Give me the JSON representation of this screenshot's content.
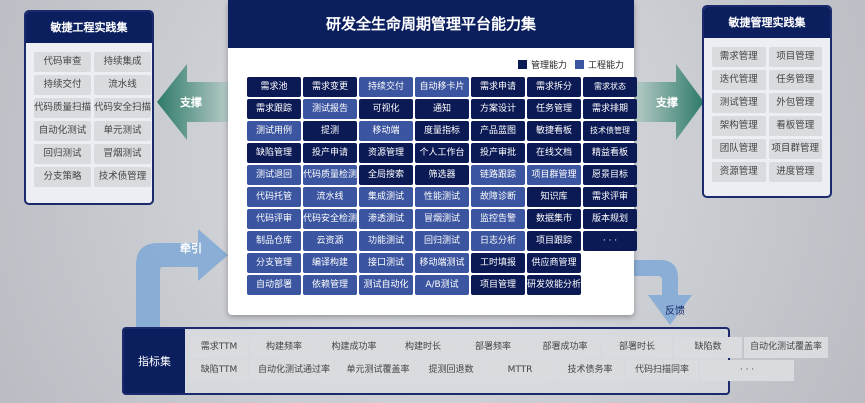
{
  "title": "研发全生命周期管理平台能力集",
  "legend": [
    {
      "label": "管理能力",
      "color": "#0b1a55"
    },
    {
      "label": "工程能力",
      "color": "#3b55a0"
    }
  ],
  "left_panel": {
    "title": "敏捷工程实践集",
    "items": [
      "代码审查",
      "持续集成",
      "持续交付",
      "流水线",
      "代码质量扫描",
      "代码安全扫描",
      "自动化测试",
      "单元测试",
      "回归测试",
      "冒烟测试",
      "分支策略",
      "技术债管理"
    ]
  },
  "right_panel": {
    "title": "敏捷管理实践集",
    "items": [
      "需求管理",
      "项目管理",
      "迭代管理",
      "任务管理",
      "测试管理",
      "外包管理",
      "架构管理",
      "看板管理",
      "团队管理",
      "项目群管理",
      "资源管理",
      "进度管理"
    ]
  },
  "arrows": {
    "left": "支撑",
    "right": "支撑",
    "pull": "牵引",
    "feedback": "反馈"
  },
  "capabilities": [
    [
      {
        "t": "需求池",
        "k": "m"
      },
      {
        "t": "需求变更",
        "k": "m"
      },
      {
        "t": "持续交付",
        "k": "e"
      },
      {
        "t": "自动移卡片",
        "k": "e"
      },
      {
        "t": "需求申请",
        "k": "m"
      },
      {
        "t": "需求拆分",
        "k": "m"
      },
      {
        "t": "需求状态",
        "k": "m"
      }
    ],
    [
      {
        "t": "需求跟踪",
        "k": "m"
      },
      {
        "t": "测试报告",
        "k": "e"
      },
      {
        "t": "可视化",
        "k": "m"
      },
      {
        "t": "通知",
        "k": "m"
      },
      {
        "t": "方案设计",
        "k": "m"
      },
      {
        "t": "任务管理",
        "k": "m"
      },
      {
        "t": "需求排期",
        "k": "m"
      }
    ],
    [
      {
        "t": "测试用例",
        "k": "e"
      },
      {
        "t": "提测",
        "k": "m"
      },
      {
        "t": "移动端",
        "k": "e"
      },
      {
        "t": "度量指标",
        "k": "m"
      },
      {
        "t": "产品蓝图",
        "k": "m"
      },
      {
        "t": "敏捷看板",
        "k": "m"
      },
      {
        "t": "技术债管理",
        "k": "m"
      }
    ],
    [
      {
        "t": "缺陷管理",
        "k": "m"
      },
      {
        "t": "投产申请",
        "k": "m"
      },
      {
        "t": "资源管理",
        "k": "m"
      },
      {
        "t": "个人工作台",
        "k": "m"
      },
      {
        "t": "投产审批",
        "k": "m"
      },
      {
        "t": "在线文档",
        "k": "m"
      },
      {
        "t": "精益看板",
        "k": "m"
      }
    ],
    [
      {
        "t": "测试退回",
        "k": "e"
      },
      {
        "t": "代码质量检测",
        "k": "e"
      },
      {
        "t": "全局搜索",
        "k": "m"
      },
      {
        "t": "筛选器",
        "k": "m"
      },
      {
        "t": "链路跟踪",
        "k": "e"
      },
      {
        "t": "项目群管理",
        "k": "e"
      },
      {
        "t": "愿景目标",
        "k": "m"
      }
    ],
    [
      {
        "t": "代码托管",
        "k": "e"
      },
      {
        "t": "流水线",
        "k": "e"
      },
      {
        "t": "集成测试",
        "k": "e"
      },
      {
        "t": "性能测试",
        "k": "e"
      },
      {
        "t": "故障诊断",
        "k": "e"
      },
      {
        "t": "知识库",
        "k": "m"
      },
      {
        "t": "需求评审",
        "k": "m"
      }
    ],
    [
      {
        "t": "代码评审",
        "k": "e"
      },
      {
        "t": "代码安全检测",
        "k": "e"
      },
      {
        "t": "渗透测试",
        "k": "e"
      },
      {
        "t": "冒烟测试",
        "k": "e"
      },
      {
        "t": "监控告警",
        "k": "e"
      },
      {
        "t": "数据集市",
        "k": "m"
      },
      {
        "t": "版本规划",
        "k": "m"
      }
    ],
    [
      {
        "t": "制品仓库",
        "k": "e"
      },
      {
        "t": "云资源",
        "k": "e"
      },
      {
        "t": "功能测试",
        "k": "e"
      },
      {
        "t": "回归测试",
        "k": "e"
      },
      {
        "t": "日志分析",
        "k": "e"
      },
      {
        "t": "项目跟踪",
        "k": "m"
      },
      {
        "t": "· · ·",
        "k": "m"
      }
    ],
    [
      {
        "t": "分支管理",
        "k": "e"
      },
      {
        "t": "编译构建",
        "k": "e"
      },
      {
        "t": "接口测试",
        "k": "e"
      },
      {
        "t": "移动端测试",
        "k": "e"
      },
      {
        "t": "工时填报",
        "k": "m"
      },
      {
        "t": "供应商管理",
        "k": "m"
      },
      {
        "t": "",
        "k": "x"
      }
    ],
    [
      {
        "t": "自动部署",
        "k": "e"
      },
      {
        "t": "依赖管理",
        "k": "e"
      },
      {
        "t": "测试自动化",
        "k": "e"
      },
      {
        "t": "A/B测试",
        "k": "e"
      },
      {
        "t": "项目管理",
        "k": "m"
      },
      {
        "t": "研发效能分析",
        "k": "m"
      },
      {
        "t": "",
        "k": "x"
      }
    ]
  ],
  "metrics": {
    "title": "指标集",
    "rows": [
      [
        "需求TTM",
        "构建频率",
        "构建成功率",
        "构建时长",
        "部署频率",
        "部署成功率",
        "部署时长",
        "缺陷数",
        "自动化测试覆盖率"
      ],
      [
        "缺陷TTM",
        "自动化测试通过率",
        "单元测试覆盖率",
        "提测回退数",
        "MTTR",
        "技术债务率",
        "代码扫描同率",
        "· · ·"
      ]
    ]
  }
}
